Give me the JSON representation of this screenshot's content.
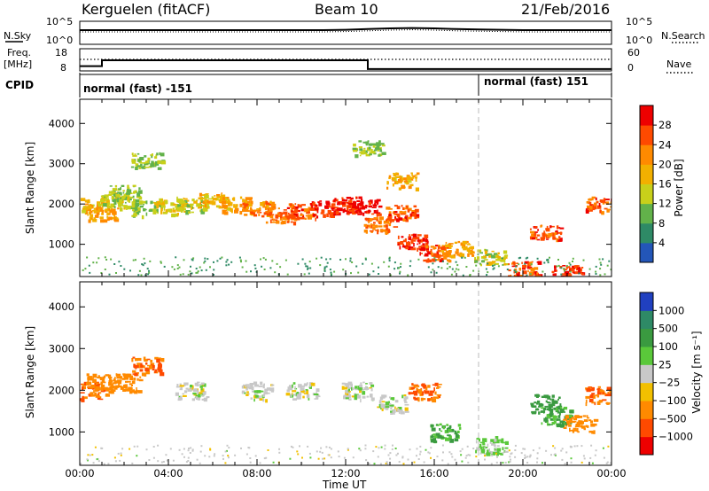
{
  "header": {
    "station": "Kerguelen (fitACF)",
    "beam": "Beam 10",
    "date": "21/Feb/2016"
  },
  "noise_panel": {
    "left_label": "N.Sky",
    "right_label": "N.Search",
    "left_ticks": [
      "10^5",
      "10^0"
    ],
    "right_ticks": [
      "10^5",
      "10^0"
    ]
  },
  "freq_panel": {
    "left_label_line1": "Freq.",
    "left_label_line2": "[MHz]",
    "left_ticks": [
      "18",
      "8"
    ],
    "right_ticks": [
      "60",
      "0"
    ],
    "right_label": "Nave",
    "cpid_label": "CPID",
    "modes": [
      "normal (fast) -151",
      "normal (fast) 151"
    ]
  },
  "x_axis": {
    "label": "Time UT",
    "ticks": [
      "00:00",
      "04:00",
      "08:00",
      "12:00",
      "16:00",
      "20:00",
      "00:00"
    ]
  },
  "power_panel": {
    "ylabel": "Slant Range [km]",
    "yticks": [
      "1000",
      "2000",
      "3000",
      "4000"
    ],
    "colorbar_label": "Power [dB]",
    "colorbar_ticks": [
      "4",
      "8",
      "12",
      "16",
      "20",
      "24",
      "28"
    ],
    "colors": [
      "#1c1cf0",
      "#2356b8",
      "#2e8a66",
      "#62b24a",
      "#c8d01a",
      "#f2b000",
      "#ff8a00",
      "#ff4a00",
      "#ee0000"
    ]
  },
  "velocity_panel": {
    "ylabel": "Slant Range [km]",
    "yticks": [
      "1000",
      "2000",
      "3000",
      "4000"
    ],
    "colorbar_label": "Velocity [m s⁻¹]",
    "colorbar_ticks": [
      "1000",
      "500",
      "100",
      "25",
      "−25",
      "−100",
      "−500",
      "−1000"
    ],
    "colors": [
      "#2040c0",
      "#2e8a66",
      "#3a9a40",
      "#5ac83a",
      "#c8c8c8",
      "#f2c000",
      "#ff8a00",
      "#ff4a00",
      "#ee0000"
    ]
  },
  "chart_data": [
    {
      "type": "line",
      "title": "N.Sky / N.Search",
      "x": [
        0,
        1,
        2,
        3,
        4,
        5,
        6,
        7,
        8,
        9,
        10,
        11,
        12,
        13,
        14,
        15,
        16,
        17,
        18,
        19,
        20,
        21,
        22,
        23,
        24
      ],
      "values": [
        3.5,
        3.5,
        3.5,
        3.5,
        3.5,
        3.5,
        3.5,
        3.5,
        3.5,
        3.5,
        3.5,
        3.5,
        3.6,
        3.8,
        4.0,
        4.1,
        4.0,
        3.8,
        3.7,
        3.6,
        3.5,
        3.5,
        3.5,
        3.5,
        3.5
      ],
      "ylim": [
        0,
        5
      ],
      "log_scale": true
    },
    {
      "type": "line",
      "title": "Freq / Nave",
      "series": [
        {
          "x": [
            0,
            1,
            1,
            13,
            13,
            24
          ],
          "values": [
            10,
            10,
            13,
            13,
            8.5,
            8.5
          ]
        },
        {
          "x": [
            0,
            24
          ],
          "values": [
            12,
            12
          ]
        }
      ],
      "ylim": [
        8,
        18
      ]
    },
    {
      "type": "heatmap",
      "ylabel": "Slant Range [km]",
      "xlabel": "Time UT",
      "xlim": [
        0,
        24
      ],
      "ylim": [
        200,
        4600
      ],
      "colorbar": {
        "label": "Power [dB]",
        "range": [
          0,
          32
        ]
      },
      "cells": [
        [
          0.5,
          2000,
          18
        ],
        [
          1.0,
          1800,
          20
        ],
        [
          1.5,
          2100,
          14
        ],
        [
          2.0,
          2300,
          12
        ],
        [
          3.0,
          1900,
          12
        ],
        [
          4.0,
          1950,
          16
        ],
        [
          5.0,
          2000,
          14
        ],
        [
          6.0,
          2100,
          18
        ],
        [
          7.0,
          2000,
          20
        ],
        [
          8.0,
          1900,
          22
        ],
        [
          9.0,
          1750,
          24
        ],
        [
          10.0,
          1850,
          26
        ],
        [
          11.0,
          1900,
          28
        ],
        [
          12.0,
          2000,
          28
        ],
        [
          12.8,
          1950,
          30
        ],
        [
          13.5,
          1500,
          24
        ],
        [
          14.5,
          1800,
          26
        ],
        [
          15.0,
          1100,
          28
        ],
        [
          16.0,
          800,
          26
        ],
        [
          17.0,
          900,
          20
        ],
        [
          18.5,
          700,
          14
        ],
        [
          20.0,
          400,
          26
        ],
        [
          21.0,
          1300,
          26
        ],
        [
          22.0,
          300,
          28
        ],
        [
          23.5,
          2000,
          26
        ],
        [
          3.0,
          3100,
          12
        ],
        [
          13.0,
          3400,
          12
        ],
        [
          14.5,
          2600,
          18
        ]
      ]
    },
    {
      "type": "heatmap",
      "ylabel": "Slant Range [km]",
      "xlabel": "Time UT",
      "xlim": [
        0,
        24
      ],
      "ylim": [
        200,
        4600
      ],
      "colorbar": {
        "label": "Velocity [m s⁻¹]",
        "range": [
          -1000,
          1000
        ]
      },
      "cells": [
        [
          0.5,
          2000,
          -500
        ],
        [
          1.0,
          2200,
          -300
        ],
        [
          2.0,
          2200,
          -400
        ],
        [
          3.0,
          2600,
          -500
        ],
        [
          5.0,
          2000,
          0
        ],
        [
          8.0,
          2000,
          0
        ],
        [
          10.0,
          2000,
          0
        ],
        [
          12.5,
          2000,
          0
        ],
        [
          14.0,
          1700,
          0
        ],
        [
          15.5,
          2000,
          -500
        ],
        [
          16.5,
          1000,
          100
        ],
        [
          18.5,
          700,
          50
        ],
        [
          21.0,
          1700,
          300
        ],
        [
          21.5,
          1400,
          100
        ],
        [
          22.5,
          1200,
          -200
        ],
        [
          23.5,
          1900,
          -500
        ]
      ]
    }
  ]
}
